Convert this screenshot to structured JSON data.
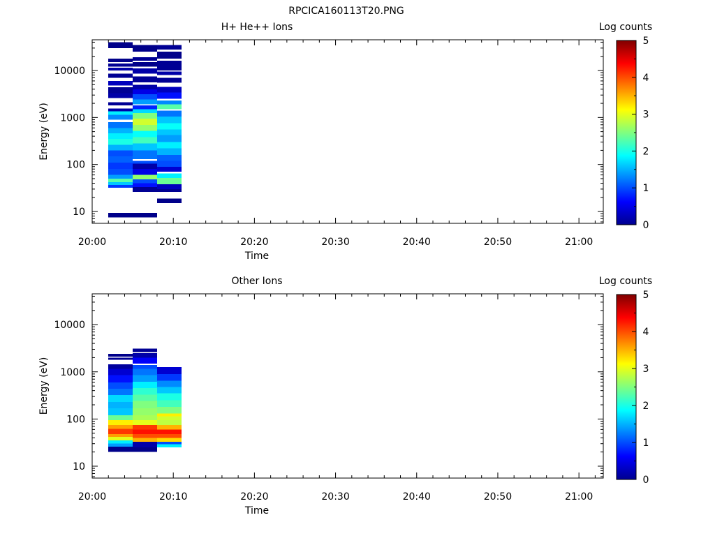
{
  "figure_title": "RPCICA160113T20.PNG",
  "chart_data": [
    {
      "type": "heatmap",
      "title": "H+ He++ Ions",
      "xlabel": "Time",
      "ylabel": "Energy (eV)",
      "y_scale": "log",
      "ylim": [
        5.6,
        45000
      ],
      "xlim": [
        "20:00",
        "21:03"
      ],
      "x_ticks": [
        "20:00",
        "20:10",
        "20:20",
        "20:30",
        "20:40",
        "20:50",
        "21:00"
      ],
      "y_ticks": [
        "10",
        "100",
        "1000",
        "10000"
      ],
      "colorbar": {
        "label": "Log counts",
        "range": [
          0,
          5
        ],
        "ticks": [
          "0",
          "1",
          "2",
          "3",
          "4",
          "5"
        ],
        "colormap": "jet"
      },
      "grid": false,
      "time_bins": [
        {
          "start": "20:02",
          "end": "20:05",
          "bands": [
            [
              7.5,
              9.3,
              0.05
            ],
            [
              32,
              37,
              0.9
            ],
            [
              37,
              42,
              1.6
            ],
            [
              42,
              50,
              2.3
            ],
            [
              50,
              60,
              1.4
            ],
            [
              60,
              80,
              1.0
            ],
            [
              80,
              110,
              0.9
            ],
            [
              110,
              150,
              1.1
            ],
            [
              150,
              200,
              1.0
            ],
            [
              200,
              260,
              1.5
            ],
            [
              260,
              350,
              2.0
            ],
            [
              350,
              460,
              1.8
            ],
            [
              460,
              600,
              1.5
            ],
            [
              600,
              800,
              1.2
            ],
            [
              900,
              1150,
              1.3
            ],
            [
              1150,
              1350,
              1.8
            ],
            [
              1350,
              1550,
              0.2
            ],
            [
              1800,
              2100,
              0.1
            ],
            [
              2600,
              3300,
              0.2
            ],
            [
              3300,
              4400,
              0.1
            ],
            [
              4800,
              6000,
              0.3
            ],
            [
              7000,
              8500,
              0.1
            ],
            [
              10000,
              11500,
              0.2
            ],
            [
              12000,
              14000,
              0.1
            ],
            [
              15000,
              18000,
              0.05
            ],
            [
              30000,
              40000,
              0.05
            ]
          ]
        },
        {
          "start": "20:05",
          "end": "20:08",
          "bands": [
            [
              7.5,
              9.3,
              0.05
            ],
            [
              26,
              33,
              0.1
            ],
            [
              33,
              40,
              0.7
            ],
            [
              40,
              48,
              1.0
            ],
            [
              48,
              60,
              2.6
            ],
            [
              60,
              80,
              0.5
            ],
            [
              80,
              105,
              0.2
            ],
            [
              105,
              120,
              1.0
            ],
            [
              130,
              200,
              1.2
            ],
            [
              200,
              280,
              1.6
            ],
            [
              280,
              380,
              2.2
            ],
            [
              380,
              520,
              1.9
            ],
            [
              520,
              700,
              2.6
            ],
            [
              700,
              950,
              2.9
            ],
            [
              950,
              1250,
              2.5
            ],
            [
              1250,
              1500,
              1.7
            ],
            [
              1500,
              1800,
              0.8
            ],
            [
              1900,
              2400,
              1.4
            ],
            [
              2400,
              3100,
              1.0
            ],
            [
              3100,
              4000,
              0.5
            ],
            [
              4000,
              5000,
              0.2
            ],
            [
              5600,
              7500,
              0.1
            ],
            [
              8500,
              11000,
              0.2
            ],
            [
              12000,
              15000,
              0.05
            ],
            [
              16000,
              19000,
              0.1
            ],
            [
              25000,
              35000,
              0.05
            ]
          ]
        },
        {
          "start": "20:08",
          "end": "20:11",
          "bands": [
            [
              15,
              19,
              0.05
            ],
            [
              26,
              30,
              0.1
            ],
            [
              30,
              38,
              0.3
            ],
            [
              38,
              52,
              2.4
            ],
            [
              52,
              65,
              1.8
            ],
            [
              70,
              90,
              0.4
            ],
            [
              90,
              120,
              1.0
            ],
            [
              120,
              160,
              1.1
            ],
            [
              160,
              220,
              1.5
            ],
            [
              220,
              300,
              1.8
            ],
            [
              300,
              420,
              1.4
            ],
            [
              420,
              560,
              1.6
            ],
            [
              560,
              760,
              1.9
            ],
            [
              760,
              1050,
              1.6
            ],
            [
              1050,
              1400,
              1.2
            ],
            [
              1500,
              1900,
              2.3
            ],
            [
              1900,
              2300,
              1.3
            ],
            [
              2500,
              3400,
              0.7
            ],
            [
              3400,
              4500,
              0.3
            ],
            [
              5500,
              7000,
              0.1
            ],
            [
              8000,
              9500,
              0.2
            ],
            [
              10000,
              16000,
              0.1
            ],
            [
              18000,
              25000,
              0.05
            ],
            [
              28000,
              35000,
              0.1
            ]
          ]
        }
      ]
    },
    {
      "type": "heatmap",
      "title": "Other Ions",
      "xlabel": "Time",
      "ylabel": "Energy (eV)",
      "y_scale": "log",
      "ylim": [
        5.6,
        45000
      ],
      "xlim": [
        "20:00",
        "21:03"
      ],
      "x_ticks": [
        "20:00",
        "20:10",
        "20:20",
        "20:30",
        "20:40",
        "20:50",
        "21:00"
      ],
      "y_ticks": [
        "10",
        "100",
        "1000",
        "10000"
      ],
      "colorbar": {
        "label": "Log counts",
        "range": [
          0,
          5
        ],
        "ticks": [
          "0",
          "1",
          "2",
          "3",
          "4",
          "5"
        ],
        "colormap": "jet"
      },
      "grid": false,
      "time_bins": [
        {
          "start": "20:02",
          "end": "20:05",
          "bands": [
            [
              20,
              26,
              0.05
            ],
            [
              26,
              30,
              1.4
            ],
            [
              30,
              35,
              1.8
            ],
            [
              35,
              42,
              3.0
            ],
            [
              42,
              48,
              3.6
            ],
            [
              48,
              62,
              4.1
            ],
            [
              62,
              75,
              3.6
            ],
            [
              75,
              95,
              3.2
            ],
            [
              95,
              120,
              2.4
            ],
            [
              120,
              170,
              1.6
            ],
            [
              170,
              230,
              1.5
            ],
            [
              230,
              320,
              1.7
            ],
            [
              320,
              440,
              1.2
            ],
            [
              440,
              600,
              1.0
            ],
            [
              600,
              850,
              0.7
            ],
            [
              850,
              1150,
              0.4
            ],
            [
              1150,
              1450,
              0.15
            ],
            [
              1800,
              2000,
              0.1
            ],
            [
              2100,
              2400,
              0.05
            ]
          ]
        },
        {
          "start": "20:05",
          "end": "20:08",
          "bands": [
            [
              20,
              25,
              0.05
            ],
            [
              25,
              33,
              0.2
            ],
            [
              33,
              40,
              3.5
            ],
            [
              40,
              48,
              4.0
            ],
            [
              48,
              60,
              4.3
            ],
            [
              60,
              75,
              4.1
            ],
            [
              75,
              95,
              3.0
            ],
            [
              95,
              120,
              2.7
            ],
            [
              120,
              170,
              2.6
            ],
            [
              170,
              240,
              2.5
            ],
            [
              240,
              330,
              2.3
            ],
            [
              330,
              450,
              2.1
            ],
            [
              450,
              620,
              1.8
            ],
            [
              620,
              850,
              1.4
            ],
            [
              850,
              1150,
              1.2
            ],
            [
              1150,
              1400,
              1.0
            ],
            [
              1500,
              2000,
              0.6
            ],
            [
              2000,
              2500,
              0.2
            ],
            [
              2600,
              3100,
              0.1
            ]
          ]
        },
        {
          "start": "20:08",
          "end": "20:11",
          "bands": [
            [
              25,
              29,
              1.8
            ],
            [
              29,
              33,
              1.0
            ],
            [
              33,
              40,
              3.3
            ],
            [
              40,
              48,
              4.0
            ],
            [
              48,
              60,
              4.3
            ],
            [
              60,
              75,
              3.5
            ],
            [
              75,
              95,
              2.8
            ],
            [
              95,
              115,
              2.9
            ],
            [
              115,
              130,
              3.2
            ],
            [
              130,
              180,
              2.5
            ],
            [
              180,
              250,
              2.2
            ],
            [
              250,
              350,
              2.0
            ],
            [
              350,
              480,
              1.6
            ],
            [
              480,
              650,
              1.3
            ],
            [
              650,
              900,
              0.9
            ],
            [
              900,
              1250,
              0.4
            ]
          ]
        }
      ]
    }
  ]
}
